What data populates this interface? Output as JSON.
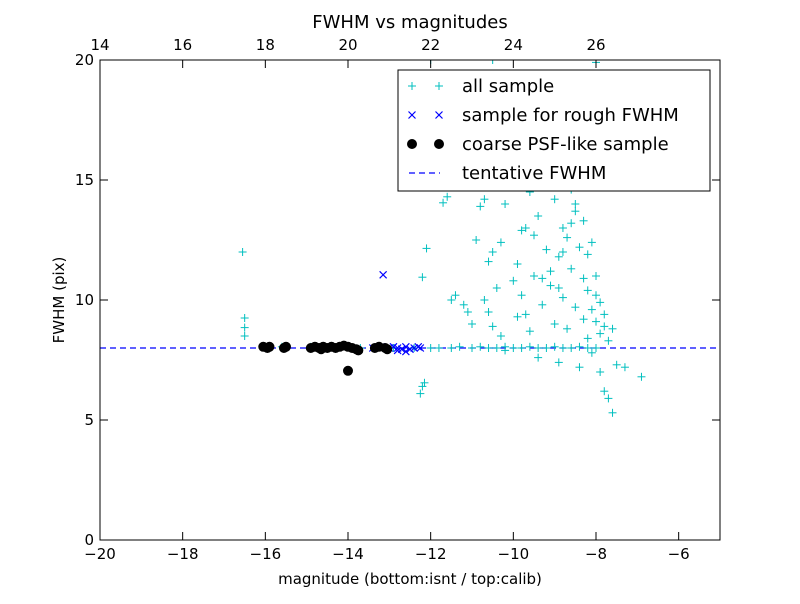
{
  "chart_data": {
    "type": "scatter",
    "title": "FWHM vs magnitudes",
    "xlabel": "magnitude (bottom:isnt / top:calib)",
    "ylabel": "FWHM (pix)",
    "xlim": [
      -20,
      -5
    ],
    "ylim": [
      0,
      20
    ],
    "x_ticks": [
      -20,
      -18,
      -16,
      -14,
      -12,
      -10,
      -8,
      -6
    ],
    "y_ticks": [
      0,
      5,
      10,
      15,
      20
    ],
    "x2_ticks": [
      14,
      16,
      18,
      20,
      22,
      24,
      26
    ],
    "x2_offset": 34,
    "grid": false,
    "legend_position": "top-right",
    "tentative_fwhm": 8.0,
    "series": [
      {
        "name": "all sample",
        "marker": "plus",
        "color": "#00bfbf",
        "points": [
          [
            -16.55,
            12.0
          ],
          [
            -16.5,
            9.25
          ],
          [
            -16.5,
            8.85
          ],
          [
            -16.5,
            8.5
          ],
          [
            -16.0,
            8.05
          ],
          [
            -15.95,
            8.0
          ],
          [
            -15.6,
            8.05
          ],
          [
            -15.55,
            8.0
          ],
          [
            -14.9,
            8.05
          ],
          [
            -14.6,
            8.0
          ],
          [
            -14.1,
            8.1
          ],
          [
            -13.7,
            8.0
          ],
          [
            -13.2,
            8.05
          ],
          [
            -12.9,
            8.0
          ],
          [
            -12.4,
            8.0
          ],
          [
            -12.1,
            12.15
          ],
          [
            -12.2,
            10.95
          ],
          [
            -12.15,
            6.55
          ],
          [
            -12.2,
            6.4
          ],
          [
            -12.25,
            6.1
          ],
          [
            -12.0,
            8.0
          ],
          [
            -11.8,
            8.0
          ],
          [
            -11.5,
            8.0
          ],
          [
            -11.3,
            8.05
          ],
          [
            -11.0,
            8.0
          ],
          [
            -10.8,
            8.05
          ],
          [
            -10.6,
            8.0
          ],
          [
            -10.4,
            8.0
          ],
          [
            -10.2,
            8.05
          ],
          [
            -10.0,
            8.0
          ],
          [
            -9.8,
            8.0
          ],
          [
            -9.6,
            8.05
          ],
          [
            -9.4,
            8.0
          ],
          [
            -9.2,
            8.0
          ],
          [
            -9.0,
            8.05
          ],
          [
            -8.8,
            8.0
          ],
          [
            -8.6,
            8.0
          ],
          [
            -8.4,
            8.05
          ],
          [
            -8.2,
            8.0
          ],
          [
            -8.0,
            8.0
          ],
          [
            -11.6,
            14.3
          ],
          [
            -11.7,
            14.05
          ],
          [
            -11.5,
            10.0
          ],
          [
            -11.4,
            10.2
          ],
          [
            -11.2,
            9.8
          ],
          [
            -11.0,
            9.0
          ],
          [
            -10.9,
            12.5
          ],
          [
            -10.8,
            13.9
          ],
          [
            -10.7,
            14.2
          ],
          [
            -10.6,
            11.6
          ],
          [
            -10.5,
            12.0
          ],
          [
            -10.6,
            9.5
          ],
          [
            -10.4,
            10.5
          ],
          [
            -10.3,
            8.5
          ],
          [
            -10.2,
            7.9
          ],
          [
            -10.2,
            14.0
          ],
          [
            -10.1,
            15.5
          ],
          [
            -10.0,
            14.8
          ],
          [
            -9.9,
            11.5
          ],
          [
            -9.8,
            12.9
          ],
          [
            -9.8,
            10.2
          ],
          [
            -9.7,
            9.4
          ],
          [
            -9.6,
            8.7
          ],
          [
            -9.5,
            11.0
          ],
          [
            -9.4,
            13.5
          ],
          [
            -9.4,
            7.6
          ],
          [
            -9.3,
            9.8
          ],
          [
            -9.2,
            12.1
          ],
          [
            -9.1,
            10.6
          ],
          [
            -9.0,
            14.2
          ],
          [
            -9.0,
            9.0
          ],
          [
            -8.9,
            11.8
          ],
          [
            -8.9,
            7.4
          ],
          [
            -8.8,
            13.0
          ],
          [
            -8.8,
            10.1
          ],
          [
            -8.7,
            12.6
          ],
          [
            -8.7,
            8.8
          ],
          [
            -8.6,
            14.6
          ],
          [
            -8.6,
            11.3
          ],
          [
            -8.5,
            9.7
          ],
          [
            -8.5,
            13.7
          ],
          [
            -8.4,
            12.2
          ],
          [
            -8.4,
            7.2
          ],
          [
            -8.4,
            15.2
          ],
          [
            -8.3,
            10.9
          ],
          [
            -8.3,
            9.2
          ],
          [
            -8.3,
            13.3
          ],
          [
            -8.2,
            11.9
          ],
          [
            -8.2,
            8.4
          ],
          [
            -8.2,
            10.4
          ],
          [
            -8.1,
            9.6
          ],
          [
            -8.1,
            12.4
          ],
          [
            -8.1,
            7.8
          ],
          [
            -8.0,
            11.0
          ],
          [
            -8.0,
            9.1
          ],
          [
            -8.0,
            10.2
          ],
          [
            -7.9,
            8.6
          ],
          [
            -7.9,
            9.9
          ],
          [
            -7.9,
            7.0
          ],
          [
            -7.8,
            8.9
          ],
          [
            -7.8,
            9.4
          ],
          [
            -7.8,
            6.2
          ],
          [
            -7.7,
            5.9
          ],
          [
            -7.7,
            8.3
          ],
          [
            -7.6,
            5.3
          ],
          [
            -7.6,
            8.8
          ],
          [
            -7.5,
            7.3
          ],
          [
            -7.3,
            7.2
          ],
          [
            -6.9,
            6.8
          ],
          [
            -8.5,
            14.0
          ],
          [
            -8.6,
            13.2
          ],
          [
            -8.8,
            12.0
          ],
          [
            -8.9,
            10.5
          ],
          [
            -9.1,
            11.2
          ],
          [
            -9.3,
            10.9
          ],
          [
            -9.5,
            12.7
          ],
          [
            -9.6,
            14.5
          ],
          [
            -9.7,
            13.0
          ],
          [
            -9.9,
            9.3
          ],
          [
            -10.0,
            10.8
          ],
          [
            -10.3,
            12.4
          ],
          [
            -10.5,
            8.9
          ],
          [
            -10.7,
            10.0
          ],
          [
            -11.1,
            9.5
          ],
          [
            -11.8,
            16.0
          ],
          [
            -9.2,
            16.8
          ],
          [
            -9.0,
            15.8
          ],
          [
            -8.7,
            16.2
          ],
          [
            -8.9,
            17.5
          ],
          [
            -9.5,
            17.0
          ],
          [
            -10.3,
            16.5
          ],
          [
            -10.8,
            15.7
          ],
          [
            -9.8,
            18.5
          ],
          [
            -10.5,
            20.0
          ],
          [
            -8.0,
            19.9
          ],
          [
            -8.6,
            18.9
          ],
          [
            -11.2,
            19.0
          ],
          [
            -12.0,
            20.0
          ]
        ]
      },
      {
        "name": "sample for rough FWHM",
        "marker": "x",
        "color": "#0000ff",
        "points": [
          [
            -13.15,
            11.05
          ],
          [
            -13.4,
            8.0
          ],
          [
            -13.2,
            8.05
          ],
          [
            -13.0,
            8.0
          ],
          [
            -12.9,
            8.05
          ],
          [
            -12.8,
            8.0
          ],
          [
            -12.7,
            7.95
          ],
          [
            -12.6,
            7.85
          ],
          [
            -12.5,
            7.95
          ],
          [
            -12.4,
            8.0
          ],
          [
            -12.3,
            8.05
          ],
          [
            -12.25,
            8.0
          ],
          [
            -12.8,
            7.9
          ],
          [
            -12.6,
            8.05
          ]
        ]
      },
      {
        "name": "coarse PSF-like sample",
        "marker": "circle",
        "color": "#000000",
        "points": [
          [
            -16.05,
            8.05
          ],
          [
            -15.95,
            8.0
          ],
          [
            -15.9,
            8.05
          ],
          [
            -15.55,
            8.0
          ],
          [
            -15.5,
            8.05
          ],
          [
            -14.9,
            8.0
          ],
          [
            -14.8,
            8.05
          ],
          [
            -14.7,
            8.0
          ],
          [
            -14.6,
            8.05
          ],
          [
            -14.5,
            8.0
          ],
          [
            -14.4,
            8.05
          ],
          [
            -14.3,
            8.0
          ],
          [
            -14.2,
            8.05
          ],
          [
            -14.1,
            8.1
          ],
          [
            -14.0,
            8.05
          ],
          [
            -13.9,
            8.0
          ],
          [
            -13.8,
            7.95
          ],
          [
            -13.75,
            7.9
          ],
          [
            -14.0,
            7.05
          ],
          [
            -13.35,
            8.0
          ],
          [
            -13.25,
            8.05
          ],
          [
            -13.1,
            8.0
          ],
          [
            -13.05,
            7.95
          ],
          [
            -14.65,
            7.95
          ]
        ]
      },
      {
        "name": "tentative FWHM",
        "marker": "dashed-line",
        "color": "#0000ff"
      }
    ]
  }
}
